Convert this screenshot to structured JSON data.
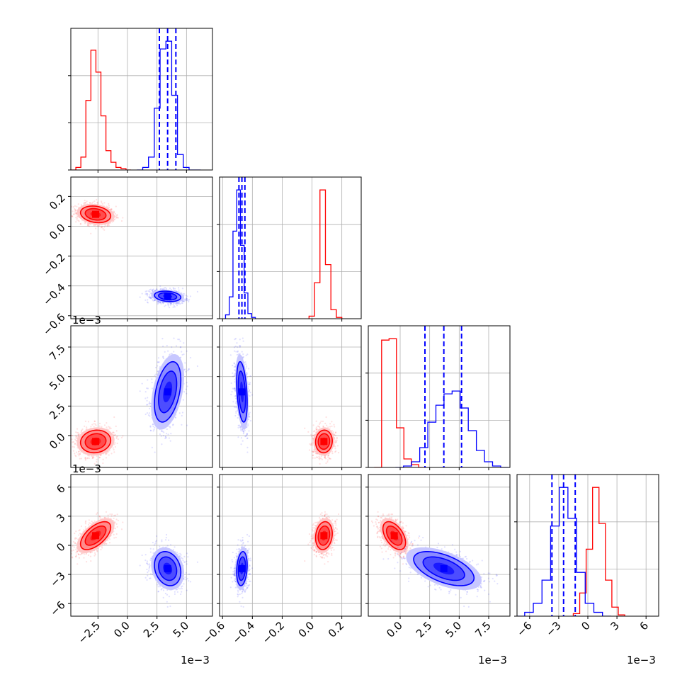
{
  "chart_data": {
    "type": "corner",
    "grid": true,
    "colors": {
      "series_a": "#ff0000",
      "series_b": "#0000ff"
    },
    "params": [
      {
        "range": [
          -0.0048,
          0.0072
        ],
        "ticks": [
          -0.0025,
          0.0,
          0.0025,
          0.005
        ],
        "tick_labels": [
          "−2.5",
          "0.0",
          "2.5",
          "5.0"
        ],
        "offset_label": "1e−3",
        "tick_rotation": -45
      },
      {
        "range": [
          -0.62,
          0.33
        ],
        "ticks": [
          -0.6,
          -0.4,
          -0.2,
          0.0,
          0.2
        ],
        "tick_labels": [
          "−0.6",
          "−0.4",
          "−0.2",
          "0.0",
          "0.2"
        ],
        "offset_label": "",
        "tick_rotation": -45
      },
      {
        "range": [
          -0.0027,
          0.0093
        ],
        "ticks": [
          0.0,
          0.0025,
          0.005,
          0.0075
        ],
        "tick_labels": [
          "0.0",
          "2.5",
          "5.0",
          "7.5"
        ],
        "offset_label": "1e−3",
        "tick_rotation": -45
      },
      {
        "range": [
          -0.0073,
          0.0073
        ],
        "ticks": [
          -0.006,
          -0.003,
          0.0,
          0.003,
          0.006
        ],
        "tick_labels": [
          "−6",
          "−3",
          "0",
          "3",
          "6"
        ],
        "offset_label": "1e−3",
        "tick_rotation": -45
      }
    ],
    "series": [
      {
        "color": "#ff0000",
        "mean": [
          -0.0027,
          0.08,
          -0.0005,
          0.001
        ],
        "std": [
          0.0008,
          0.035,
          0.0006,
          0.0009
        ],
        "corr": [
          [
            1,
            -0.2,
            0.1,
            0.6
          ],
          [
            -0.2,
            1,
            0.05,
            0.15
          ],
          [
            0.1,
            0.05,
            1,
            -0.5
          ],
          [
            0.6,
            0.15,
            -0.5,
            1
          ]
        ],
        "hist_1d": [
          {
            "edges": [
              -0.0048,
              0.0003
            ],
            "counts": [
              0,
              2,
              10,
              54,
              93,
              76,
              42,
              15,
              6,
              2,
              1,
              0
            ]
          },
          {
            "edges": [
              -0.02,
              0.2
            ],
            "counts": [
              2,
              28,
              100,
              42,
              7,
              1
            ]
          },
          {
            "edges": [
              -0.0022,
              0.0022
            ],
            "counts": [
              0,
              90,
              91,
              28,
              6,
              2,
              0
            ]
          },
          {
            "edges": [
              -0.0015,
              0.0038
            ],
            "counts": [
              2,
              18,
              52,
              100,
              72,
              28,
              7,
              1
            ]
          }
        ],
        "quantiles": []
      },
      {
        "color": "#0000ff",
        "mean": [
          0.0034,
          -0.47,
          0.0037,
          -0.0024
        ],
        "std": [
          0.0007,
          0.022,
          0.0016,
          0.0011
        ],
        "corr": [
          [
            1,
            -0.2,
            0.4,
            -0.2
          ],
          [
            -0.2,
            1,
            -0.35,
            0.2
          ],
          [
            0.4,
            -0.35,
            1,
            -0.55
          ],
          [
            -0.2,
            0.2,
            -0.55,
            1
          ]
        ],
        "hist_1d": [
          {
            "edges": [
              0.0008,
              0.0062
            ],
            "counts": [
              0,
              2,
              10,
              48,
              94,
              100,
              58,
              12,
              2,
              0,
              0
            ]
          },
          {
            "edges": [
              -0.58,
              -0.38
            ],
            "counts": [
              3,
              17,
              68,
              100,
              57,
              20,
              4,
              1
            ]
          },
          {
            "edges": [
              -0.0004,
              0.0092
            ],
            "counts": [
              0,
              1,
              4,
              14,
              32,
              44,
              52,
              54,
              42,
              26,
              12,
              4,
              1,
              0
            ]
          },
          {
            "edges": [
              -0.0074,
              0.0024
            ],
            "counts": [
              0,
              3,
              10,
              28,
              70,
              100,
              76,
              34,
              10,
              3,
              0
            ]
          }
        ],
        "quantiles": [
          [
            0.0027,
            0.0034,
            0.0041
          ],
          [
            -0.49,
            -0.47,
            -0.45
          ],
          [
            0.0021,
            0.0037,
            0.0052
          ],
          [
            -0.0037,
            -0.0025,
            -0.0013
          ]
        ]
      }
    ]
  }
}
